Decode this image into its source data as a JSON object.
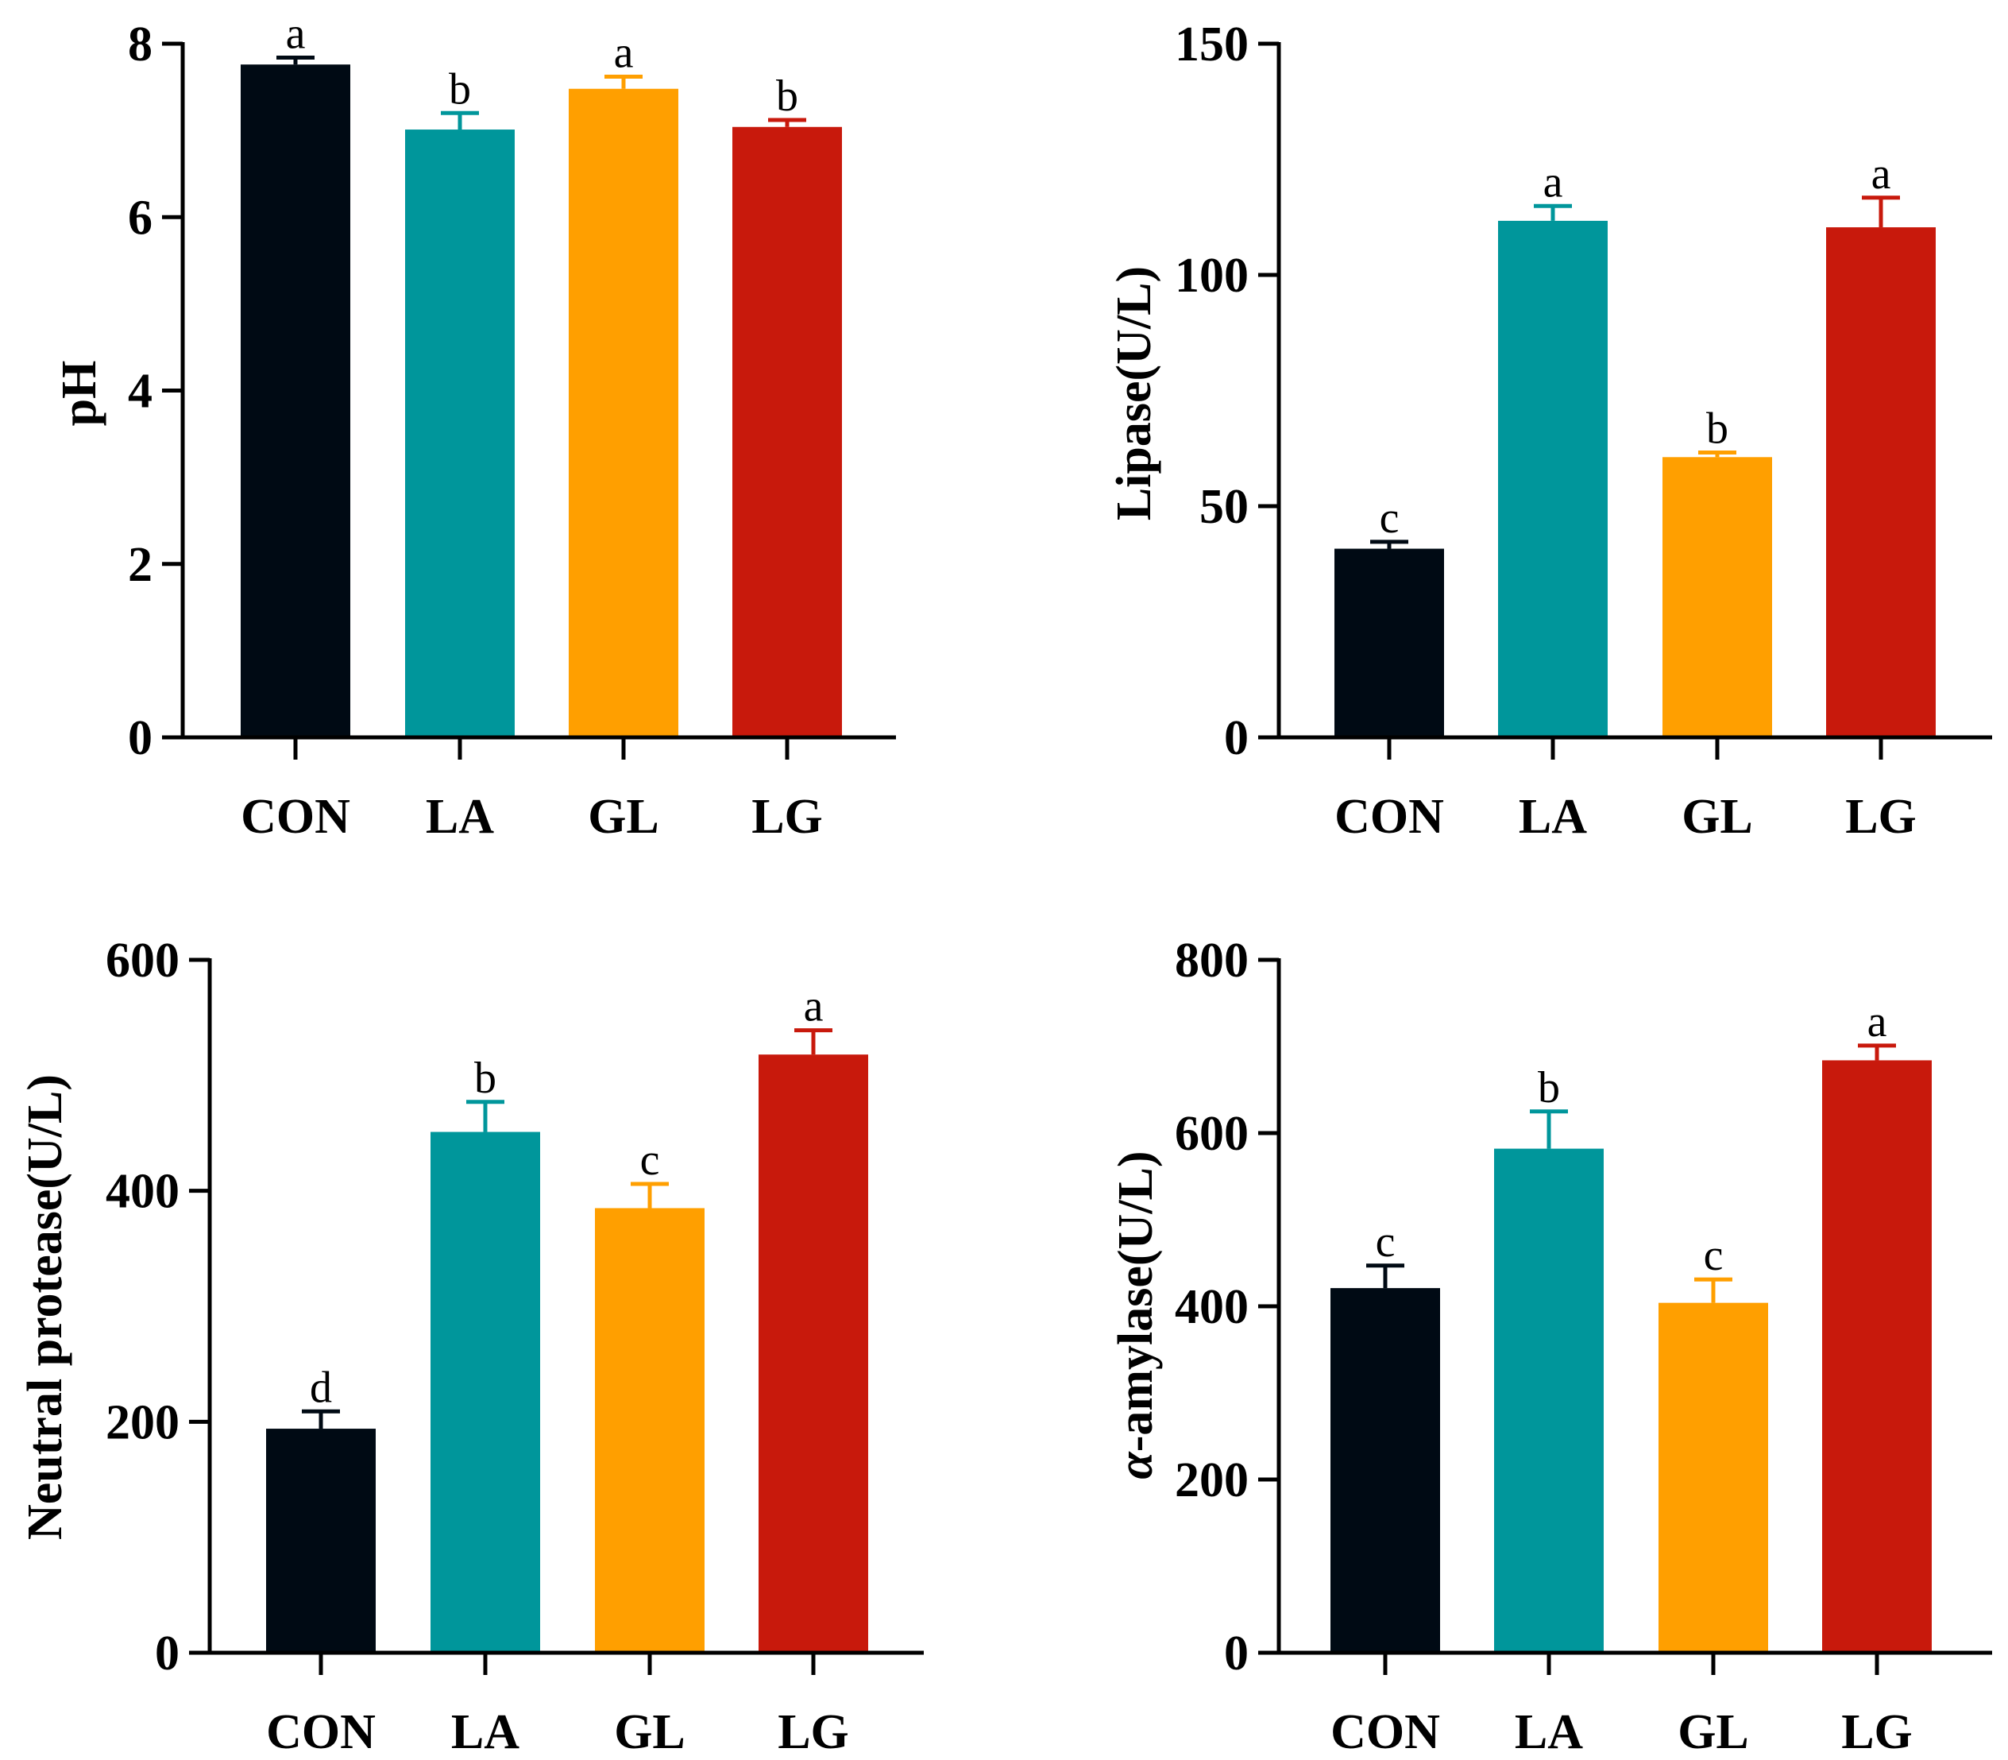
{
  "colors": {
    "CON": "#000a14",
    "LA": "#00969b",
    "GL": "#ff9f00",
    "LG": "#c8190c"
  },
  "chart_data": [
    {
      "type": "bar",
      "ylabel": "pH",
      "ylim": [
        0,
        8
      ],
      "yticks": [
        0,
        2,
        4,
        6,
        8
      ],
      "ytick_labels": [
        "0",
        "2",
        "4",
        "6",
        "8"
      ],
      "categories": [
        "CON",
        "LA",
        "GL",
        "LG"
      ],
      "values": [
        7.76,
        7.01,
        7.48,
        7.04
      ],
      "errors": [
        0.08,
        0.19,
        0.14,
        0.08
      ],
      "significance": [
        "a",
        "b",
        "a",
        "b"
      ]
    },
    {
      "type": "bar",
      "ylabel": "Lipase(U/L)",
      "ylim": [
        0,
        150
      ],
      "yticks": [
        0,
        50,
        100,
        150
      ],
      "ytick_labels": [
        "0",
        "50",
        "100",
        "150"
      ],
      "categories": [
        "CON",
        "LA",
        "GL",
        "LG"
      ],
      "values": [
        40.8,
        111.7,
        60.6,
        110.3
      ],
      "errors": [
        1.5,
        3.2,
        1.0,
        6.4
      ],
      "significance": [
        "c",
        "a",
        "b",
        "a"
      ]
    },
    {
      "type": "bar",
      "ylabel": "Neutral protease(U/L)",
      "ylim": [
        0,
        600
      ],
      "yticks": [
        0,
        200,
        400,
        600
      ],
      "ytick_labels": [
        "0",
        "200",
        "400",
        "600"
      ],
      "categories": [
        "CON",
        "LA",
        "GL",
        "LG"
      ],
      "values": [
        194,
        451,
        385,
        518
      ],
      "errors": [
        15,
        26,
        21,
        21
      ],
      "significance": [
        "d",
        "b",
        "c",
        "a"
      ]
    },
    {
      "type": "bar",
      "ylabel_italic": "α",
      "ylabel": "-amylase(U/L)",
      "ylim": [
        0,
        800
      ],
      "yticks": [
        0,
        200,
        400,
        600,
        800
      ],
      "ytick_labels": [
        "0",
        "200",
        "400",
        "600",
        "800"
      ],
      "categories": [
        "CON",
        "LA",
        "GL",
        "LG"
      ],
      "values": [
        421,
        582,
        404,
        684
      ],
      "errors": [
        26,
        43,
        27,
        17
      ],
      "significance": [
        "c",
        "b",
        "c",
        "a"
      ]
    }
  ]
}
